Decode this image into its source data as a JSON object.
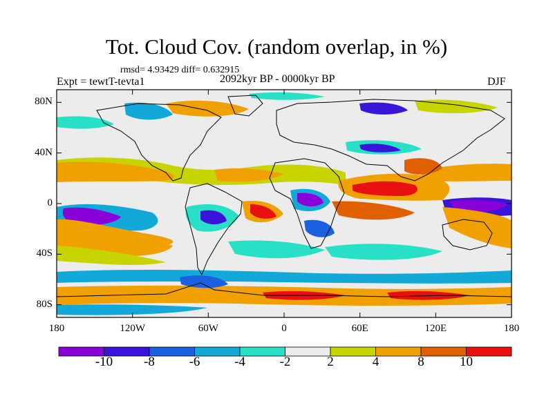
{
  "header": {
    "title": "Tot. Cloud Cov. (random overlap, in %)",
    "stats": "rmsd= 4.93429 diff= 0.632915",
    "experiment": "Expt = tewtT-tevta1",
    "period": "2092kyr BP - 0000kyr BP",
    "season": "DJF"
  },
  "axes": {
    "lat_ticks": [
      "80N",
      "40N",
      "0",
      "40S",
      "80S"
    ],
    "lon_ticks": [
      "180",
      "120W",
      "60W",
      "0",
      "60E",
      "120E",
      "180"
    ],
    "lat_values": [
      80,
      40,
      0,
      -40,
      -80
    ],
    "lon_values": [
      -180,
      -120,
      -60,
      0,
      60,
      120,
      180
    ],
    "lat_range": [
      -90,
      90
    ],
    "lon_range": [
      -180,
      180
    ]
  },
  "colorbar": {
    "labels": [
      "-10",
      "-8",
      "-6",
      "-4",
      "-2",
      "2",
      "4",
      "8",
      "10"
    ],
    "colors": [
      "#8a00d8",
      "#3a14d8",
      "#1a60e0",
      "#12a8d8",
      "#28e0c8",
      "#ececec",
      "#c8d400",
      "#f0a000",
      "#e06000",
      "#e81010"
    ]
  },
  "chart_data": {
    "type": "map",
    "variable": "Tot. Cloud Cov. (random overlap, in %)",
    "units": "%",
    "levels": [
      -10,
      -8,
      -6,
      -4,
      -2,
      2,
      4,
      8,
      10
    ],
    "anomaly_regions": [
      {
        "region": "central Pacific south of equator",
        "value": -10
      },
      {
        "region": "western Pacific / Maritime Continent equator",
        "value": -10
      },
      {
        "region": "equatorial Africa",
        "value": -8
      },
      {
        "region": "northern subtropical band (Atlantic, Pacific)",
        "value": 6
      },
      {
        "region": "Indian Ocean / South Asia",
        "value": 8
      },
      {
        "region": "southern subtropical ocean bands",
        "value": 6
      },
      {
        "region": "Southern Ocean / Antarctic coast",
        "value": 6
      }
    ]
  }
}
